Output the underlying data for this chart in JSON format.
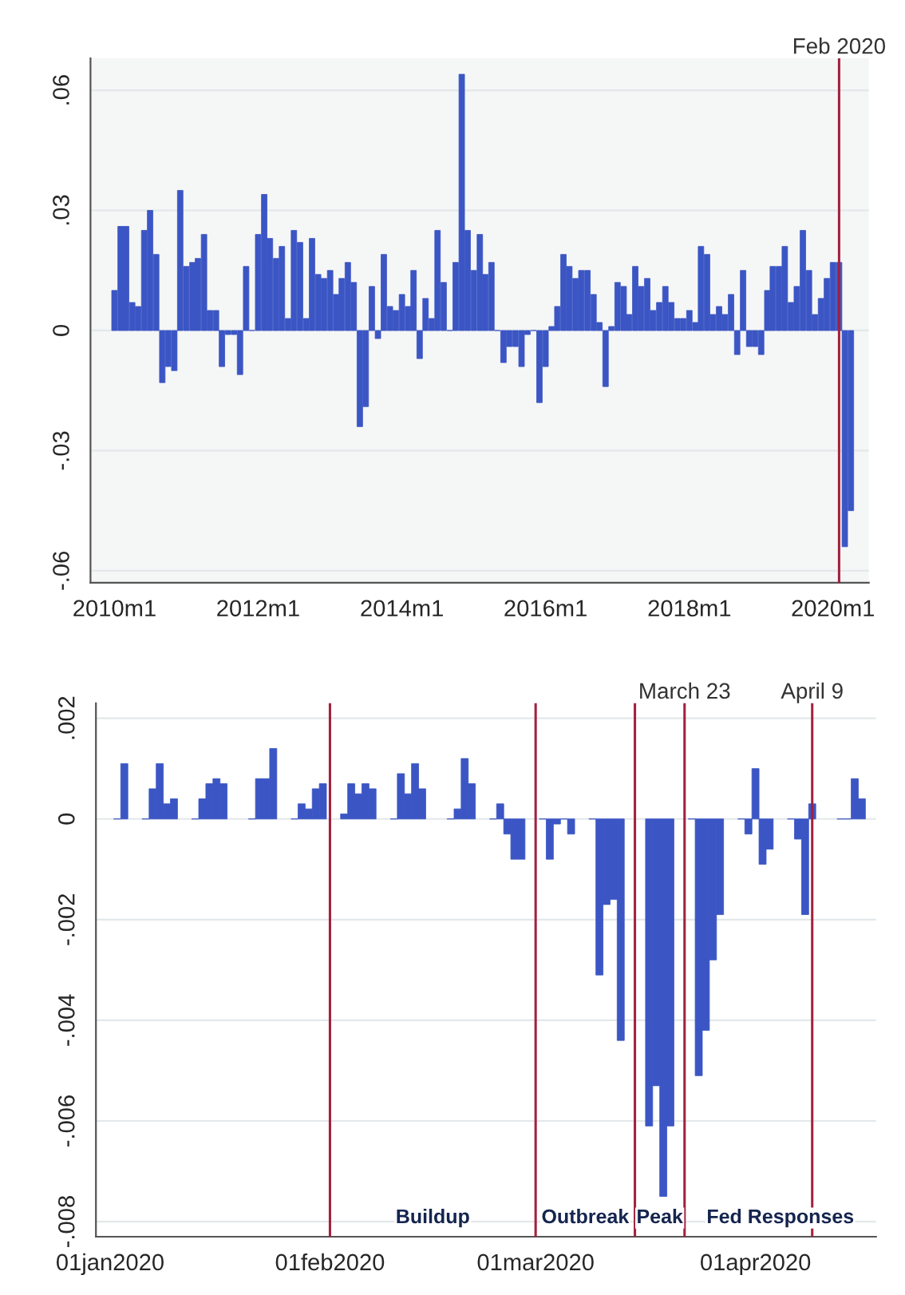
{
  "chart_data": [
    {
      "type": "bar",
      "color": "#3b56c4",
      "x": [
        "2010-01",
        "2010-02",
        "2010-03",
        "2010-04",
        "2010-05",
        "2010-06",
        "2010-07",
        "2010-08",
        "2010-09",
        "2010-10",
        "2010-11",
        "2010-12",
        "2011-01",
        "2011-02",
        "2011-03",
        "2011-04",
        "2011-05",
        "2011-06",
        "2011-07",
        "2011-08",
        "2011-09",
        "2011-10",
        "2011-11",
        "2011-12",
        "2012-01",
        "2012-02",
        "2012-03",
        "2012-04",
        "2012-05",
        "2012-06",
        "2012-07",
        "2012-08",
        "2012-09",
        "2012-10",
        "2012-11",
        "2012-12",
        "2013-01",
        "2013-02",
        "2013-03",
        "2013-04",
        "2013-05",
        "2013-06",
        "2013-07",
        "2013-08",
        "2013-09",
        "2013-10",
        "2013-11",
        "2013-12",
        "2014-01",
        "2014-02",
        "2014-03",
        "2014-04",
        "2014-05",
        "2014-06",
        "2014-07",
        "2014-08",
        "2014-09",
        "2014-10",
        "2014-11",
        "2014-12",
        "2015-01",
        "2015-02",
        "2015-03",
        "2015-04",
        "2015-05",
        "2015-06",
        "2015-07",
        "2015-08",
        "2015-09",
        "2015-10",
        "2015-11",
        "2015-12",
        "2016-01",
        "2016-02",
        "2016-03",
        "2016-04",
        "2016-05",
        "2016-06",
        "2016-07",
        "2016-08",
        "2016-09",
        "2016-10",
        "2016-11",
        "2016-12",
        "2017-01",
        "2017-02",
        "2017-03",
        "2017-04",
        "2017-05",
        "2017-06",
        "2017-07",
        "2017-08",
        "2017-09",
        "2017-10",
        "2017-11",
        "2017-12",
        "2018-01",
        "2018-02",
        "2018-03",
        "2018-04",
        "2018-05",
        "2018-06",
        "2018-07",
        "2018-08",
        "2018-09",
        "2018-10",
        "2018-11",
        "2018-12",
        "2019-01",
        "2019-02",
        "2019-03",
        "2019-04",
        "2019-05",
        "2019-06",
        "2019-07",
        "2019-08",
        "2019-09",
        "2019-10",
        "2019-11",
        "2019-12",
        "2020-01",
        "2020-02",
        "2020-03",
        "2020-04"
      ],
      "values": [
        0.01,
        0.026,
        0.026,
        0.007,
        0.006,
        0.025,
        0.03,
        0.019,
        -0.013,
        -0.009,
        -0.01,
        0.035,
        0.016,
        0.017,
        0.018,
        0.024,
        0.005,
        0.005,
        -0.009,
        -0.001,
        -0.001,
        -0.011,
        0.016,
        0.0,
        0.024,
        0.034,
        0.023,
        0.018,
        0.021,
        0.003,
        0.025,
        0.022,
        0.003,
        0.023,
        0.014,
        0.013,
        0.015,
        0.009,
        0.013,
        0.017,
        0.012,
        -0.024,
        -0.019,
        0.011,
        -0.002,
        0.019,
        0.006,
        0.005,
        0.009,
        0.006,
        0.015,
        -0.007,
        0.008,
        0.003,
        0.025,
        0.012,
        0.0,
        0.017,
        0.064,
        0.025,
        0.015,
        0.024,
        0.014,
        0.017,
        0.0,
        -0.008,
        -0.004,
        -0.004,
        -0.009,
        -0.001,
        0.0,
        -0.018,
        -0.009,
        0.001,
        0.006,
        0.019,
        0.016,
        0.013,
        0.015,
        0.015,
        0.009,
        0.002,
        -0.014,
        0.001,
        0.012,
        0.011,
        0.004,
        0.016,
        0.011,
        0.013,
        0.005,
        0.007,
        0.011,
        0.007,
        0.003,
        0.003,
        0.005,
        0.002,
        0.021,
        0.019,
        0.004,
        0.006,
        0.004,
        0.009,
        -0.006,
        0.015,
        -0.004,
        -0.004,
        -0.006,
        0.01,
        0.016,
        0.016,
        0.021,
        0.007,
        0.011,
        0.025,
        0.015,
        0.004,
        0.008,
        0.013,
        0.017,
        0.017,
        -0.054,
        -0.045
      ],
      "xlim": [
        "2009-09",
        "2020-07"
      ],
      "ylim": [
        -0.063,
        0.068
      ],
      "xticks": [
        {
          "value": "2010-01",
          "label": "2010m1"
        },
        {
          "value": "2012-01",
          "label": "2012m1"
        },
        {
          "value": "2014-01",
          "label": "2014m1"
        },
        {
          "value": "2016-01",
          "label": "2016m1"
        },
        {
          "value": "2018-01",
          "label": "2018m1"
        },
        {
          "value": "2020-01",
          "label": "2020m1"
        }
      ],
      "yticks": [
        {
          "value": -0.06,
          "label": "-.06"
        },
        {
          "value": -0.03,
          "label": "-.03"
        },
        0,
        {
          "value": 0.03,
          "label": ".03"
        },
        {
          "value": 0.06,
          "label": ".06"
        }
      ],
      "grid": "y",
      "ref_lines": [
        {
          "axis": "x",
          "value": "2020-02",
          "label": "Feb 2020",
          "color": "#a3213f"
        }
      ]
    },
    {
      "type": "bar",
      "color": "#3b56c4",
      "x": [
        "2020-01-02",
        "2020-01-03",
        "2020-01-06",
        "2020-01-07",
        "2020-01-08",
        "2020-01-09",
        "2020-01-10",
        "2020-01-13",
        "2020-01-14",
        "2020-01-15",
        "2020-01-16",
        "2020-01-17",
        "2020-01-21",
        "2020-01-22",
        "2020-01-23",
        "2020-01-24",
        "2020-01-27",
        "2020-01-28",
        "2020-01-29",
        "2020-01-30",
        "2020-01-31",
        "2020-02-03",
        "2020-02-04",
        "2020-02-05",
        "2020-02-06",
        "2020-02-07",
        "2020-02-10",
        "2020-02-11",
        "2020-02-12",
        "2020-02-13",
        "2020-02-14",
        "2020-02-18",
        "2020-02-19",
        "2020-02-20",
        "2020-02-21",
        "2020-02-24",
        "2020-02-25",
        "2020-02-26",
        "2020-02-27",
        "2020-02-28",
        "2020-03-02",
        "2020-03-03",
        "2020-03-04",
        "2020-03-05",
        "2020-03-06",
        "2020-03-09",
        "2020-03-10",
        "2020-03-11",
        "2020-03-12",
        "2020-03-13",
        "2020-03-17",
        "2020-03-18",
        "2020-03-19",
        "2020-03-20",
        "2020-03-23",
        "2020-03-24",
        "2020-03-25",
        "2020-03-26",
        "2020-03-27",
        "2020-03-30",
        "2020-03-31",
        "2020-04-01",
        "2020-04-02",
        "2020-04-03",
        "2020-04-06",
        "2020-04-07",
        "2020-04-08",
        "2020-04-09",
        "2020-04-13",
        "2020-04-14",
        "2020-04-15",
        "2020-04-16"
      ],
      "values": [
        0.0,
        0.0011,
        0.0,
        0.0006,
        0.0011,
        0.0003,
        0.0004,
        0.0,
        0.0004,
        0.0007,
        0.0008,
        0.0007,
        0.0,
        0.0008,
        0.0008,
        0.0014,
        0.0,
        0.0003,
        0.0002,
        0.0006,
        0.0007,
        0.0001,
        0.0007,
        0.0005,
        0.0007,
        0.0006,
        0.0,
        0.0009,
        0.0005,
        0.0011,
        0.0006,
        0.0,
        0.0002,
        0.0012,
        0.0007,
        0.0,
        0.0003,
        -0.0003,
        -0.0008,
        -0.0008,
        0.0,
        -0.0008,
        -0.0001,
        0.0,
        -0.0003,
        0.0,
        -0.0031,
        -0.0017,
        -0.0016,
        -0.0044,
        -0.0061,
        -0.0053,
        -0.0075,
        -0.0061,
        0.0,
        -0.0051,
        -0.0042,
        -0.0028,
        -0.0019,
        0.0,
        -0.0003,
        0.001,
        -0.0009,
        -0.0006,
        0.0,
        -0.0004,
        -0.0019,
        0.0003,
        0.0,
        0.0,
        0.0008,
        0.0004
      ],
      "xlim": [
        "2019-12-30",
        "2020-04-18"
      ],
      "ylim": [
        -0.0083,
        0.0023
      ],
      "xticks": [
        {
          "value": "2020-01-01",
          "label": "01jan2020"
        },
        {
          "value": "2020-02-01",
          "label": "01feb2020"
        },
        {
          "value": "2020-03-01",
          "label": "01mar2020"
        },
        {
          "value": "2020-04-01",
          "label": "01apr2020"
        }
      ],
      "yticks": [
        {
          "value": -0.008,
          "label": "-.008"
        },
        {
          "value": -0.006,
          "label": "-.006"
        },
        {
          "value": -0.004,
          "label": "-.004"
        },
        {
          "value": -0.002,
          "label": "-.002"
        },
        0,
        {
          "value": 0.002,
          "label": ".002"
        }
      ],
      "grid": "y",
      "ref_lines": [
        {
          "axis": "x",
          "value": "2020-02-01",
          "label": null,
          "color": "#a3213f"
        },
        {
          "axis": "x",
          "value": "2020-03-01",
          "label": null,
          "color": "#a3213f"
        },
        {
          "axis": "x",
          "value": "2020-03-15",
          "label": null,
          "color": "#a3213f"
        },
        {
          "axis": "x",
          "value": "2020-03-22",
          "label": "March 23",
          "color": "#a3213f"
        },
        {
          "axis": "x",
          "value": "2020-04-09",
          "label": "April 9",
          "color": "#a3213f"
        }
      ],
      "annotations": [
        "Buildup",
        "Outbreak",
        "Peak",
        "Fed Responses"
      ]
    }
  ]
}
